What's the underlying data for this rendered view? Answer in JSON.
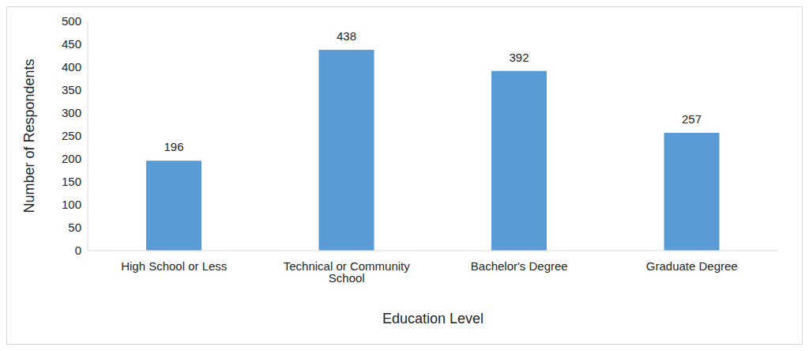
{
  "chart_data": {
    "type": "bar",
    "categories": [
      "High School or Less",
      "Technical or Community School",
      "Bachelor's Degree",
      "Graduate Degree"
    ],
    "values": [
      196,
      438,
      392,
      257
    ],
    "color": "#5b9bd5",
    "x_label": "Education Level",
    "y_label": "Number of Respondents",
    "ylim": [
      0,
      500
    ],
    "yticks": [
      0,
      50,
      100,
      150,
      200,
      250,
      300,
      350,
      400,
      450,
      500
    ],
    "grid": false,
    "data_labels": true
  }
}
